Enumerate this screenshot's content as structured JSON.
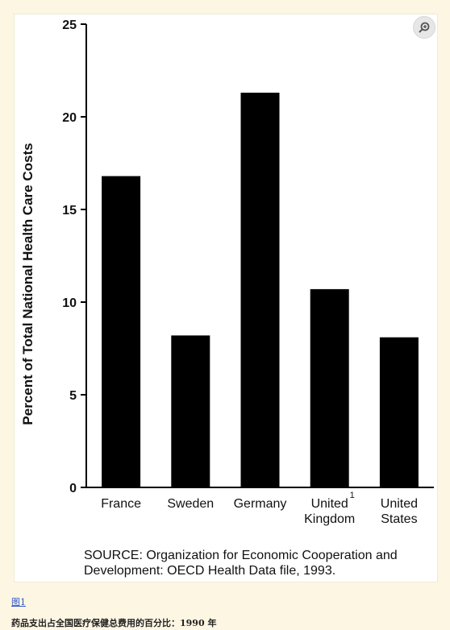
{
  "chart_data": {
    "type": "bar",
    "title": "",
    "xlabel": "",
    "ylabel": "Percent of Total National Health Care Costs",
    "ylim": [
      0,
      25
    ],
    "yticks": [
      0,
      5,
      10,
      15,
      20,
      25
    ],
    "grid": false,
    "categories": [
      {
        "lines": [
          "France"
        ]
      },
      {
        "lines": [
          "Sweden"
        ]
      },
      {
        "lines": [
          "Germany"
        ]
      },
      {
        "lines": [
          "United",
          "Kingdom"
        ],
        "footnote": "1"
      },
      {
        "lines": [
          "United",
          "States"
        ]
      }
    ],
    "values": [
      16.8,
      8.2,
      21.3,
      10.7,
      8.1
    ],
    "bar_color": "#000000"
  },
  "source": {
    "line1": "SOURCE: Organization for Economic Cooperation and",
    "line2": "Development: OECD Health Data file, 1993."
  },
  "figure_link": "图1",
  "caption": "药品支出占全国医疗保健总费用的百分比：1990 年",
  "zoom_icon": "zoom-in-icon"
}
